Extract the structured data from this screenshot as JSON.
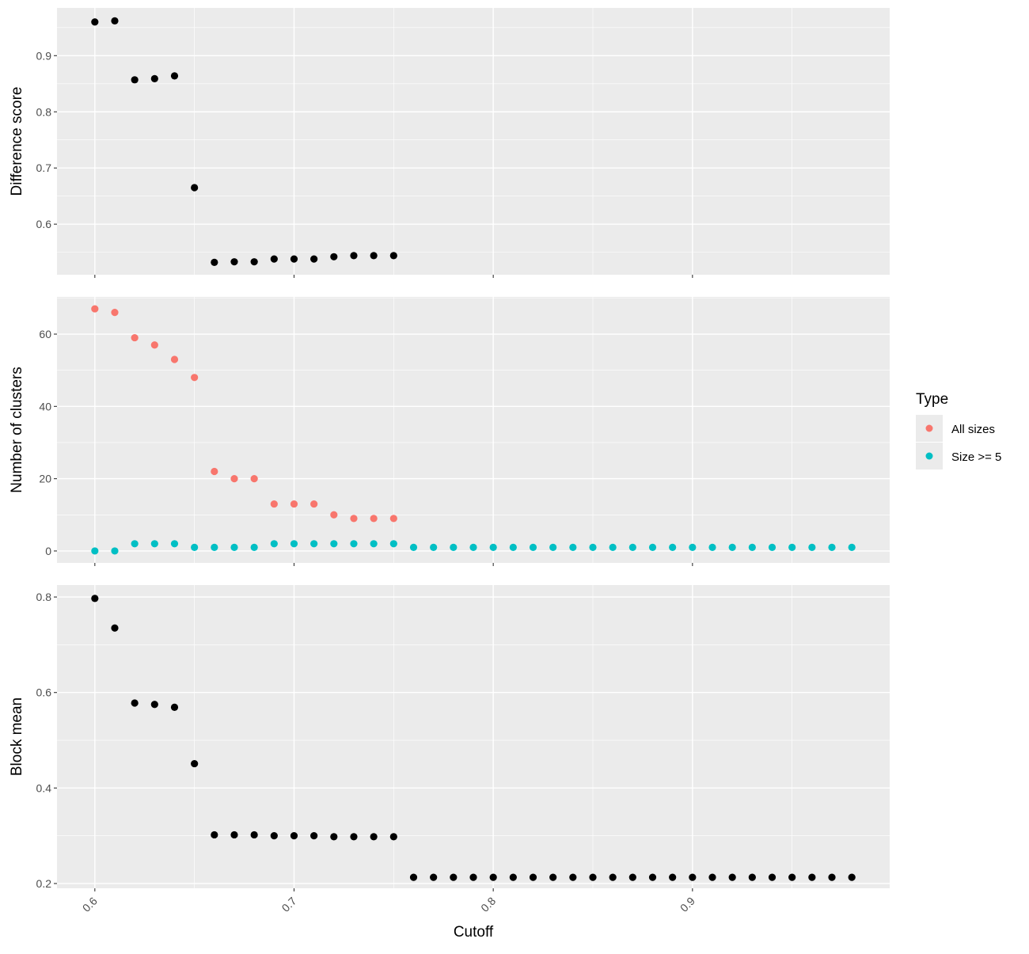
{
  "xlabel": "Cutoff",
  "x_ticks": [
    0.6,
    0.7,
    0.8,
    0.9
  ],
  "xlim": [
    0.581,
    0.999
  ],
  "legend": {
    "title": "Type",
    "placement": "right",
    "items": [
      {
        "label": "All sizes",
        "color": "#F8766D"
      },
      {
        "label": "Size >= 5",
        "color": "#00BFC4"
      }
    ]
  },
  "chart_data": [
    {
      "type": "scatter",
      "ylabel": "Difference score",
      "ylim": [
        0.51,
        0.985
      ],
      "y_ticks": [
        0.6,
        0.7,
        0.8,
        0.9
      ],
      "color": "#000000",
      "series": [
        {
          "x": [
            0.6,
            0.61,
            0.62,
            0.63,
            0.64,
            0.65,
            0.66,
            0.67,
            0.68,
            0.69,
            0.7,
            0.71,
            0.72,
            0.73,
            0.74,
            0.75
          ],
          "y": [
            0.96,
            0.962,
            0.857,
            0.859,
            0.864,
            0.665,
            0.532,
            0.533,
            0.533,
            0.538,
            0.538,
            0.538,
            0.542,
            0.544,
            0.544,
            0.544
          ]
        }
      ]
    },
    {
      "type": "scatter",
      "ylabel": "Number of clusters",
      "ylim": [
        -3.3,
        70.3
      ],
      "y_ticks": [
        0,
        20,
        40,
        60
      ],
      "series": [
        {
          "name": "All sizes",
          "color": "#F8766D",
          "x": [
            0.6,
            0.61,
            0.62,
            0.63,
            0.64,
            0.65,
            0.66,
            0.67,
            0.68,
            0.69,
            0.7,
            0.71,
            0.72,
            0.73,
            0.74,
            0.75
          ],
          "y": [
            67,
            66,
            59,
            57,
            53,
            48,
            22,
            20,
            20,
            13,
            13,
            13,
            10,
            9,
            9,
            9
          ]
        },
        {
          "name": "Size >= 5",
          "color": "#00BFC4",
          "x": [
            0.6,
            0.61,
            0.62,
            0.63,
            0.64,
            0.65,
            0.66,
            0.67,
            0.68,
            0.69,
            0.7,
            0.71,
            0.72,
            0.73,
            0.74,
            0.75,
            0.76,
            0.77,
            0.78,
            0.79,
            0.8,
            0.81,
            0.82,
            0.83,
            0.84,
            0.85,
            0.86,
            0.87,
            0.88,
            0.89,
            0.9,
            0.91,
            0.92,
            0.93,
            0.94,
            0.95,
            0.96,
            0.97,
            0.98
          ],
          "y": [
            0,
            0,
            2,
            2,
            2,
            1,
            1,
            1,
            1,
            2,
            2,
            2,
            2,
            2,
            2,
            2,
            1,
            1,
            1,
            1,
            1,
            1,
            1,
            1,
            1,
            1,
            1,
            1,
            1,
            1,
            1,
            1,
            1,
            1,
            1,
            1,
            1,
            1,
            1
          ]
        }
      ]
    },
    {
      "type": "scatter",
      "ylabel": "Block mean",
      "ylim": [
        0.19,
        0.825
      ],
      "y_ticks": [
        0.2,
        0.4,
        0.6,
        0.8
      ],
      "color": "#000000",
      "series": [
        {
          "x": [
            0.6,
            0.61,
            0.62,
            0.63,
            0.64,
            0.65,
            0.66,
            0.67,
            0.68,
            0.69,
            0.7,
            0.71,
            0.72,
            0.73,
            0.74,
            0.75,
            0.76,
            0.77,
            0.78,
            0.79,
            0.8,
            0.81,
            0.82,
            0.83,
            0.84,
            0.85,
            0.86,
            0.87,
            0.88,
            0.89,
            0.9,
            0.91,
            0.92,
            0.93,
            0.94,
            0.95,
            0.96,
            0.97,
            0.98
          ],
          "y": [
            0.797,
            0.735,
            0.578,
            0.575,
            0.569,
            0.451,
            0.302,
            0.302,
            0.302,
            0.3,
            0.3,
            0.3,
            0.298,
            0.298,
            0.298,
            0.298,
            0.213,
            0.213,
            0.213,
            0.213,
            0.213,
            0.213,
            0.213,
            0.213,
            0.213,
            0.213,
            0.213,
            0.213,
            0.213,
            0.213,
            0.213,
            0.213,
            0.213,
            0.213,
            0.213,
            0.213,
            0.213,
            0.213,
            0.213
          ]
        }
      ]
    }
  ]
}
